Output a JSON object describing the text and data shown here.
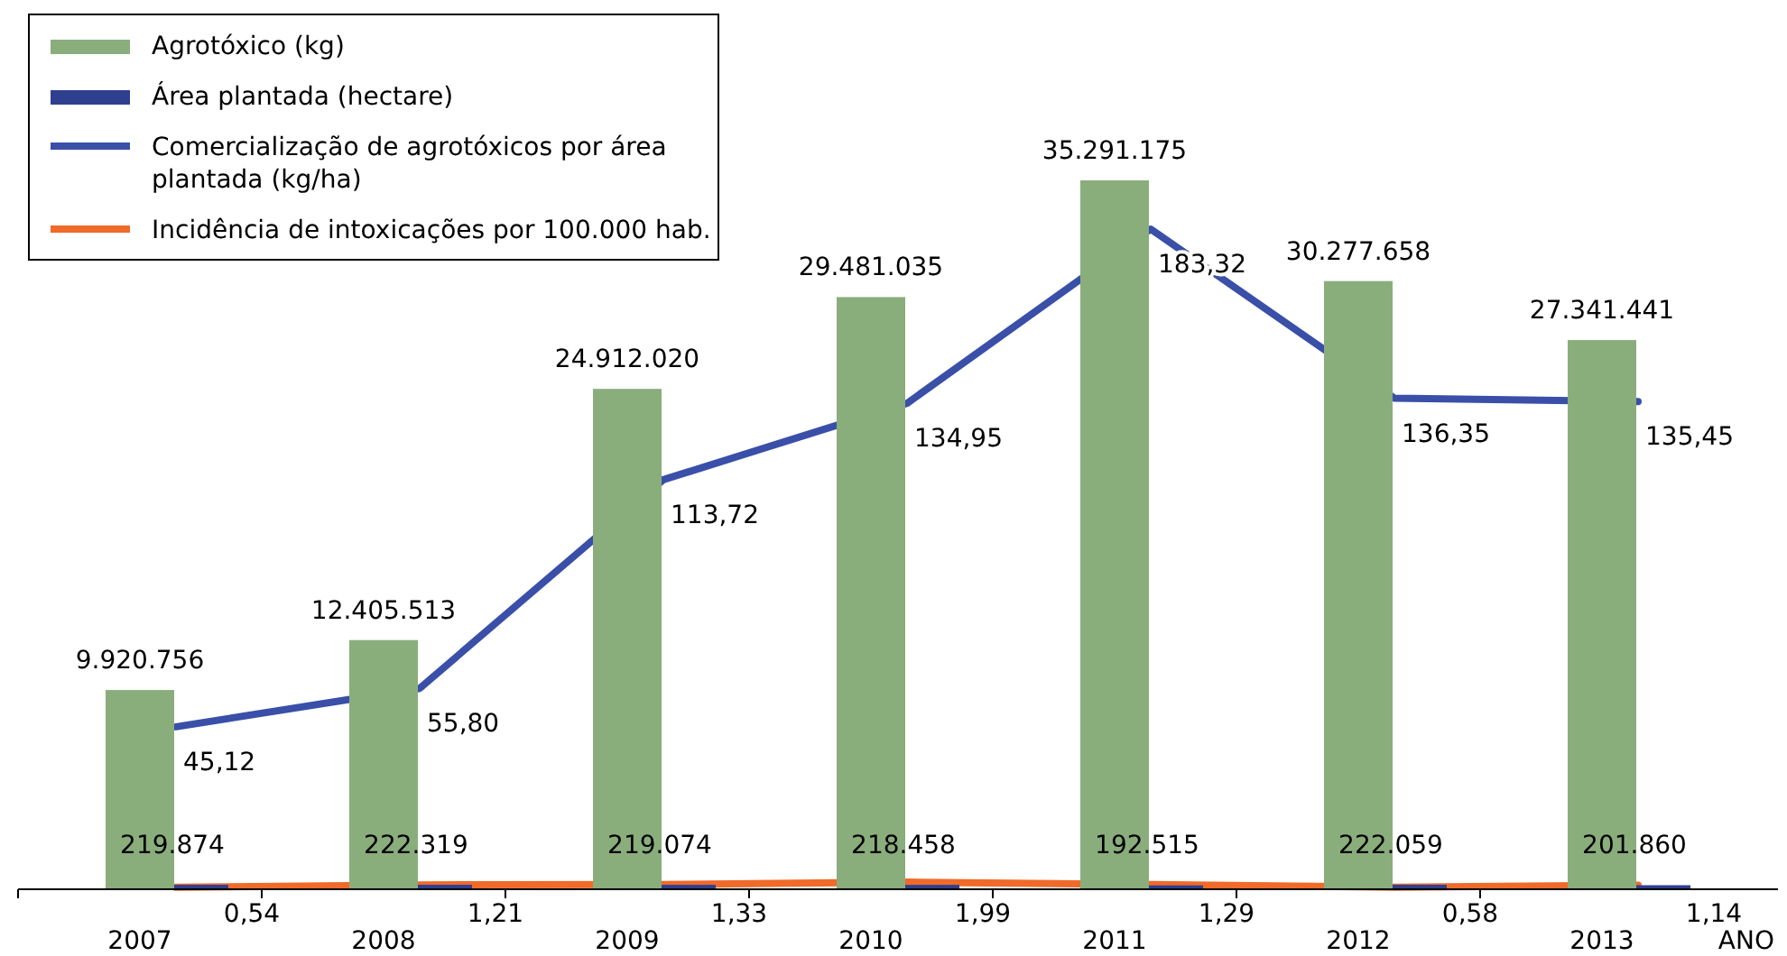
{
  "chart_data": {
    "type": "bar",
    "xlabel": "ANO",
    "categories": [
      "2007",
      "2008",
      "2009",
      "2010",
      "2011",
      "2012",
      "2013"
    ],
    "legend": "top left",
    "series": [
      {
        "name": "Agrotóxico (kg)",
        "color": "#8aad7c",
        "values": [
          9920756,
          12405513,
          24912020,
          29481035,
          35291175,
          30277658,
          27341441
        ],
        "value_labels": [
          "9.920.756",
          "12.405.513",
          "24.912.020",
          "29.481.035",
          "35.291.175",
          "30.277.658",
          "27.341.441"
        ]
      },
      {
        "name": "Área plantada (hectare)",
        "type": "bar",
        "color": "#2f3f8f",
        "values": [
          219874,
          222319,
          219074,
          218458,
          192515,
          222059,
          201860
        ],
        "value_labels": [
          "219.874",
          "222.319",
          "219.074",
          "218.458",
          "192.515",
          "222.059",
          "201.860"
        ]
      },
      {
        "name": "Comercialização de agrotóxicos por área plantada (kg/ha)",
        "type": "line",
        "axis": "y2",
        "color": "#3a4fa8",
        "values": [
          45.12,
          55.8,
          113.72,
          134.95,
          183.32,
          136.35,
          135.45
        ],
        "value_labels": [
          "45,12",
          "55,80",
          "113,72",
          "134,95",
          "183,32",
          "136,35",
          "135,45"
        ]
      },
      {
        "name": "Incidência de intoxicações por 100.000 hab.",
        "type": "line",
        "axis": "y2",
        "color": "#f06a2a",
        "values": [
          0.54,
          1.21,
          1.33,
          1.99,
          1.29,
          0.58,
          1.14
        ],
        "value_labels": [
          "0,54",
          "1,21",
          "1,33",
          "1,99",
          "1,29",
          "0,58",
          "1,14"
        ]
      }
    ]
  }
}
